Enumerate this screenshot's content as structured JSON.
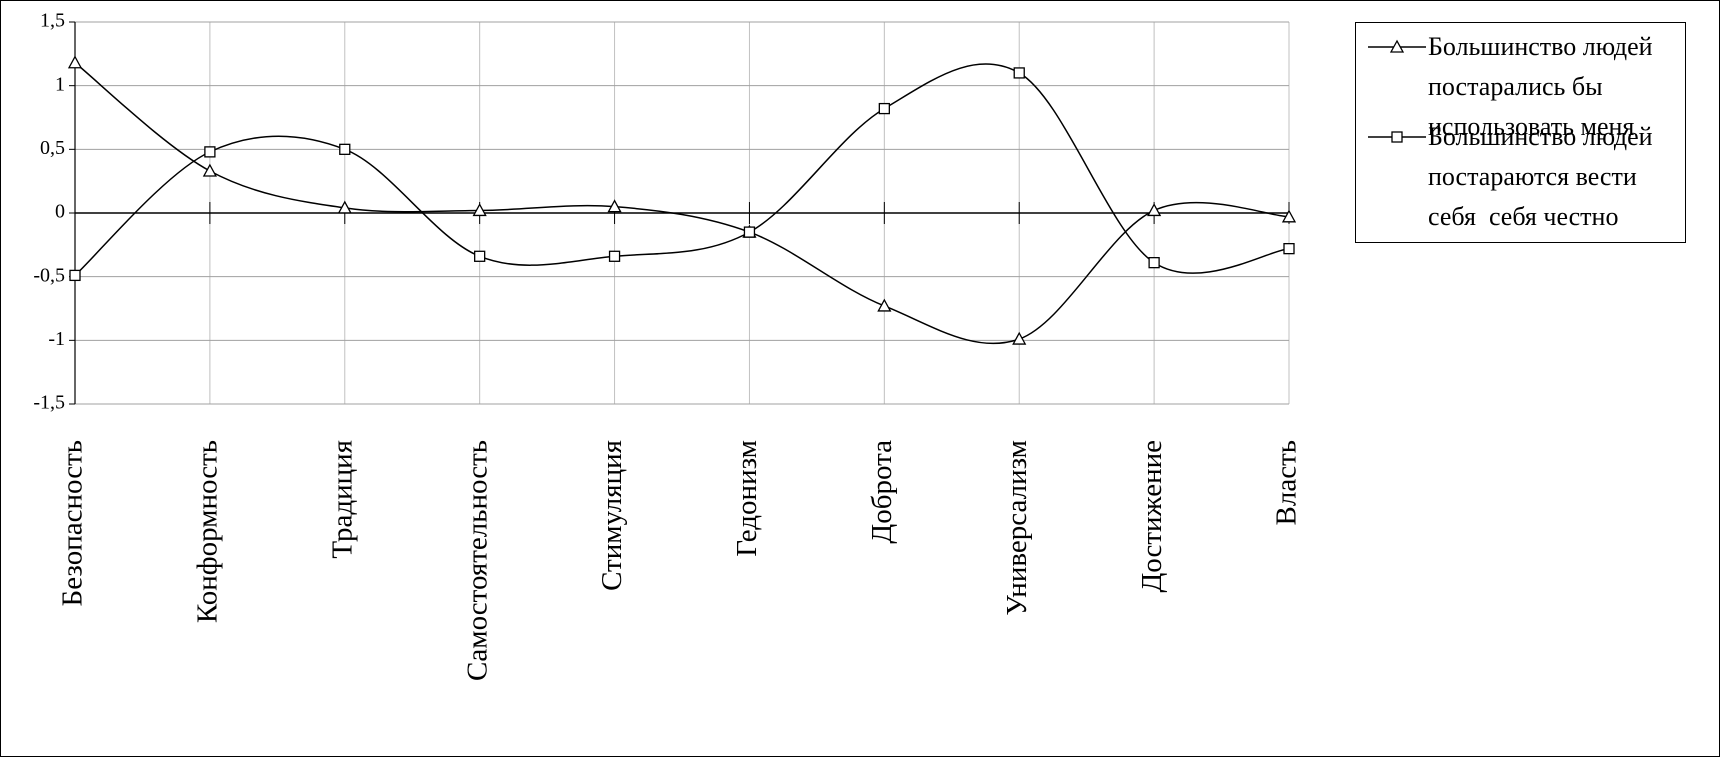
{
  "chart_data": {
    "type": "line",
    "categories": [
      "Безопасность",
      "Конформность",
      "Традиция",
      "Самостоятельность",
      "Стимуляция",
      "Гедонизм",
      "Доброта",
      "Универсализм",
      "Достижение",
      "Власть"
    ],
    "series": [
      {
        "name": "Большинство людей постарались бы использовать меня",
        "color": "#000000",
        "marker": "triangle",
        "values": [
          1.18,
          0.33,
          0.04,
          0.02,
          0.05,
          -0.15,
          -0.73,
          -0.99,
          0.02,
          -0.03
        ]
      },
      {
        "name": "Большинство людей постараются вести себя  себя честно",
        "color": "#000000",
        "marker": "square",
        "values": [
          -0.49,
          0.48,
          0.5,
          -0.34,
          -0.34,
          -0.15,
          0.82,
          1.1,
          -0.39,
          -0.28
        ]
      }
    ],
    "ylim": [
      -1.5,
      1.5
    ],
    "yticks": [
      {
        "value": -1.5,
        "label": "-1,5"
      },
      -1,
      {
        "value": -0.5,
        "label": "-0,5"
      },
      0,
      {
        "value": 0.5,
        "label": "0,5"
      },
      1,
      {
        "value": 1.5,
        "label": "1,5"
      }
    ],
    "grid": true,
    "smooth": true,
    "legend": "right"
  }
}
